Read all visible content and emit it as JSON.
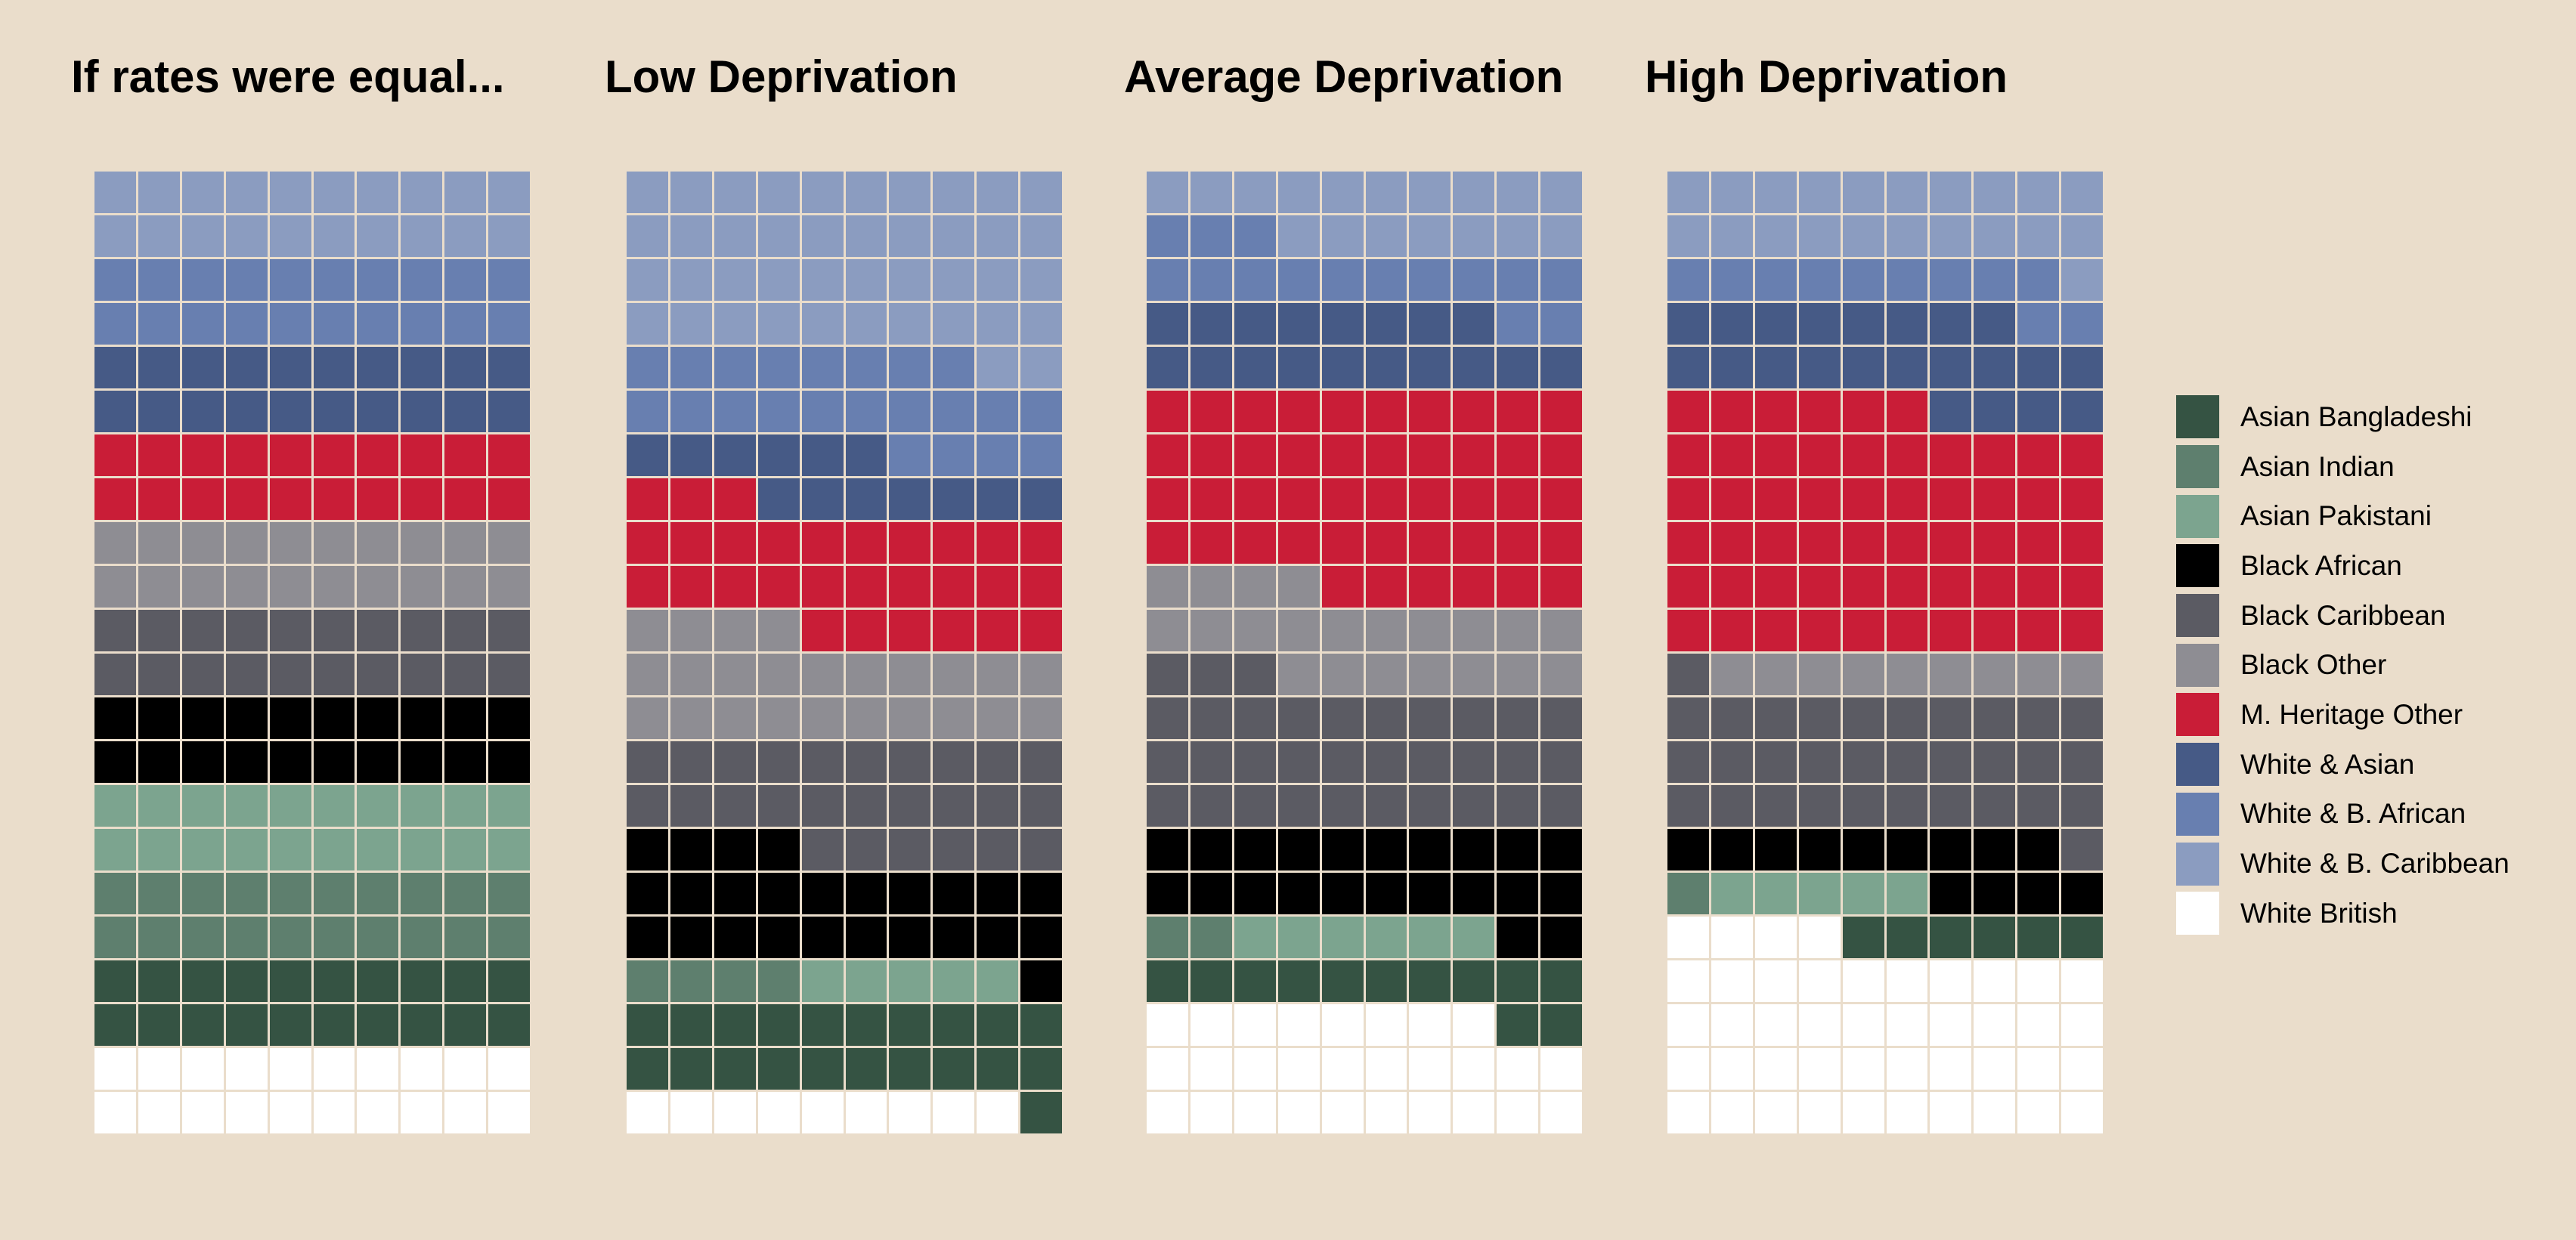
{
  "categories": [
    {
      "id": "bangladeshi",
      "label": "Asian Bangladeshi",
      "color": "#355343"
    },
    {
      "id": "indian",
      "label": "Asian Indian",
      "color": "#5e7f6e"
    },
    {
      "id": "pakistani",
      "label": "Asian Pakistani",
      "color": "#7ca48f"
    },
    {
      "id": "black_african",
      "label": "Black African",
      "color": "#000000"
    },
    {
      "id": "black_caribbean",
      "label": "Black Caribbean",
      "color": "#5b5b63"
    },
    {
      "id": "black_other",
      "label": "Black Other",
      "color": "#8e8d93"
    },
    {
      "id": "mh_other",
      "label": "M. Heritage Other",
      "color": "#c91d37"
    },
    {
      "id": "white_asian",
      "label": "White & Asian",
      "color": "#465a86"
    },
    {
      "id": "white_african",
      "label": "White & B. African",
      "color": "#687fb0"
    },
    {
      "id": "white_caribbean",
      "label": "White & B. Caribbean",
      "color": "#8b9cc0"
    },
    {
      "id": "white_british",
      "label": "White British",
      "color": "#ffffff"
    }
  ],
  "chart_data": [
    {
      "type": "waffle",
      "title": "If rates were equal...",
      "grid": {
        "rows": 22,
        "cols": 10
      },
      "values": {
        "white_british": 20,
        "bangladeshi": 20,
        "indian": 20,
        "pakistani": 20,
        "black_african": 20,
        "black_caribbean": 20,
        "black_other": 20,
        "mh_other": 20,
        "white_asian": 20,
        "white_african": 20,
        "white_caribbean": 20
      }
    },
    {
      "type": "waffle",
      "title": "Low Deprivation",
      "grid": {
        "rows": 22,
        "cols": 10
      },
      "values": {
        "white_british": 9,
        "bangladeshi": 21,
        "indian": 4,
        "pakistani": 5,
        "black_african": 25,
        "black_caribbean": 26,
        "black_other": 24,
        "mh_other": 29,
        "white_asian": 13,
        "white_african": 22,
        "white_caribbean": 42
      }
    },
    {
      "type": "waffle",
      "title": "Average Deprivation",
      "grid": {
        "rows": 22,
        "cols": 10
      },
      "values": {
        "white_british": 28,
        "bangladeshi": 12,
        "indian": 2,
        "pakistani": 6,
        "black_african": 22,
        "black_caribbean": 33,
        "black_other": 21,
        "mh_other": 46,
        "white_asian": 18,
        "white_african": 15,
        "white_caribbean": 17
      }
    },
    {
      "type": "waffle",
      "title": "High Deprivation",
      "grid": {
        "rows": 22,
        "cols": 10
      },
      "values": {
        "white_british": 44,
        "bangladeshi": 6,
        "indian": 1,
        "pakistani": 5,
        "black_african": 13,
        "black_caribbean": 32,
        "black_other": 9,
        "mh_other": 56,
        "white_asian": 22,
        "white_african": 11,
        "white_caribbean": 21
      }
    }
  ]
}
